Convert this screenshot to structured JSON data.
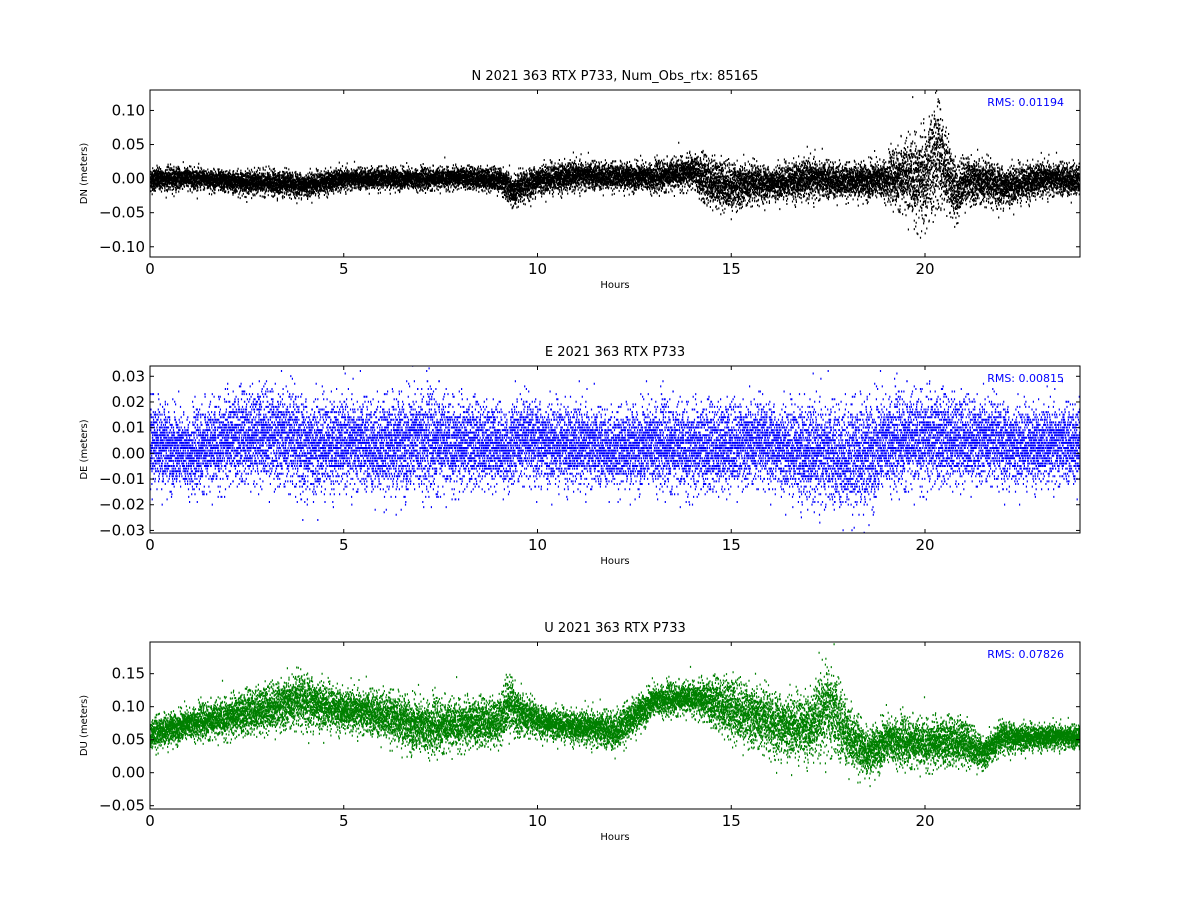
{
  "chart_data": [
    {
      "type": "scatter",
      "title": "N 2021 363 RTX  P733, Num_Obs_rtx: 85165",
      "xlabel": "Hours",
      "ylabel": "DN (meters)",
      "xlim": [
        0,
        24
      ],
      "ylim": [
        -0.115,
        0.13
      ],
      "xticks": [
        0,
        5,
        10,
        15,
        20
      ],
      "xtick_labels": [
        "0",
        "5",
        "10",
        "15",
        "20"
      ],
      "yticks": [
        -0.1,
        -0.05,
        0.0,
        0.05,
        0.1
      ],
      "ytick_labels": [
        "−0.10",
        "−0.05",
        "0.00",
        "0.05",
        "0.10"
      ],
      "annotation": "RMS:  0.01194",
      "annotation_color": "#0000ff",
      "color": "#000000",
      "grid": false,
      "series": [
        {
          "x": [
            0,
            1,
            2,
            3,
            4,
            5,
            6,
            7,
            8,
            9,
            9.25,
            9.3,
            10,
            11,
            12,
            13,
            14,
            14.3,
            15,
            16,
            17,
            18,
            19,
            19.5,
            20,
            20.3,
            20.5,
            20.8,
            21,
            22,
            23,
            24
          ],
          "y": [
            0.0,
            0.002,
            -0.003,
            -0.005,
            -0.008,
            0.0,
            0.002,
            0.0,
            0.003,
            0.0,
            -0.01,
            -0.02,
            0.0,
            0.005,
            0.005,
            0.003,
            0.012,
            0.0,
            -0.01,
            -0.005,
            0.0,
            -0.002,
            0.0,
            0.005,
            0.0,
            0.04,
            0.02,
            -0.02,
            0.0,
            -0.01,
            0.0,
            0.0
          ],
          "spread": [
            0.015,
            0.013,
            0.013,
            0.015,
            0.015,
            0.013,
            0.013,
            0.013,
            0.013,
            0.015,
            0.02,
            0.02,
            0.018,
            0.018,
            0.016,
            0.018,
            0.02,
            0.03,
            0.03,
            0.02,
            0.025,
            0.02,
            0.025,
            0.045,
            0.06,
            0.07,
            0.05,
            0.035,
            0.03,
            0.025,
            0.02,
            0.02
          ]
        }
      ]
    },
    {
      "type": "scatter",
      "title": "E 2021 363 RTX  P733",
      "xlabel": "Hours",
      "ylabel": "DE (meters)",
      "xlim": [
        0,
        24
      ],
      "ylim": [
        -0.031,
        0.034
      ],
      "xticks": [
        0,
        5,
        10,
        15,
        20
      ],
      "xtick_labels": [
        "0",
        "5",
        "10",
        "15",
        "20"
      ],
      "yticks": [
        -0.03,
        -0.02,
        -0.01,
        0.0,
        0.01,
        0.02,
        0.03
      ],
      "ytick_labels": [
        "−0.03",
        "−0.02",
        "−0.01",
        "0.00",
        "0.01",
        "0.02",
        "0.03"
      ],
      "annotation": "RMS:  0.00815",
      "annotation_color": "#0000ff",
      "color": "#0000ff",
      "grid": false,
      "series": [
        {
          "x": [
            0,
            1,
            1.5,
            2,
            3,
            4,
            5,
            6,
            7,
            8,
            9,
            9.25,
            9.3,
            10,
            11,
            12,
            13,
            14,
            15,
            16,
            17,
            18,
            18.5,
            19,
            20,
            21,
            22,
            23,
            24
          ],
          "y": [
            0.005,
            0.0,
            0.003,
            0.006,
            0.008,
            0.003,
            0.004,
            0.003,
            0.005,
            0.004,
            0.004,
            0.0,
            0.005,
            0.005,
            0.003,
            0.002,
            0.004,
            0.002,
            0.004,
            0.004,
            0.0,
            -0.001,
            0.0,
            0.005,
            0.006,
            0.006,
            0.004,
            0.003,
            0.004
          ],
          "spread": [
            0.014,
            0.012,
            0.014,
            0.014,
            0.016,
            0.016,
            0.014,
            0.015,
            0.017,
            0.014,
            0.013,
            0.012,
            0.014,
            0.013,
            0.013,
            0.012,
            0.014,
            0.014,
            0.014,
            0.013,
            0.016,
            0.017,
            0.018,
            0.015,
            0.015,
            0.014,
            0.013,
            0.012,
            0.013
          ]
        }
      ]
    },
    {
      "type": "scatter",
      "title": "U 2021 363 RTX  P733",
      "xlabel": "Hours",
      "ylabel": "DU (meters)",
      "xlim": [
        0,
        24
      ],
      "ylim": [
        -0.055,
        0.198
      ],
      "xticks": [
        0,
        5,
        10,
        15,
        20
      ],
      "xtick_labels": [
        "0",
        "5",
        "10",
        "15",
        "20"
      ],
      "yticks": [
        -0.05,
        0.0,
        0.05,
        0.1,
        0.15
      ],
      "ytick_labels": [
        "−0.05",
        "0.00",
        "0.05",
        "0.10",
        "0.15"
      ],
      "annotation": "RMS:  0.07826",
      "annotation_color": "#0000ff",
      "color": "#008000",
      "grid": false,
      "series": [
        {
          "x": [
            0,
            1,
            2,
            3,
            4,
            5,
            6,
            7,
            8,
            9,
            9.25,
            9.5,
            10,
            11,
            12,
            13,
            14,
            15,
            16,
            17,
            17.5,
            18,
            18.5,
            19,
            20,
            21,
            21.5,
            22,
            23,
            24
          ],
          "y": [
            0.06,
            0.075,
            0.085,
            0.1,
            0.11,
            0.095,
            0.09,
            0.07,
            0.075,
            0.08,
            0.11,
            0.09,
            0.08,
            0.07,
            0.065,
            0.11,
            0.115,
            0.1,
            0.075,
            0.07,
            0.1,
            0.06,
            0.03,
            0.05,
            0.045,
            0.05,
            0.03,
            0.055,
            0.055,
            0.055
          ],
          "spread": [
            0.02,
            0.02,
            0.025,
            0.03,
            0.035,
            0.025,
            0.03,
            0.035,
            0.03,
            0.03,
            0.04,
            0.03,
            0.02,
            0.02,
            0.025,
            0.02,
            0.02,
            0.04,
            0.04,
            0.04,
            0.06,
            0.04,
            0.03,
            0.03,
            0.03,
            0.03,
            0.02,
            0.02,
            0.015,
            0.015
          ]
        }
      ]
    }
  ]
}
